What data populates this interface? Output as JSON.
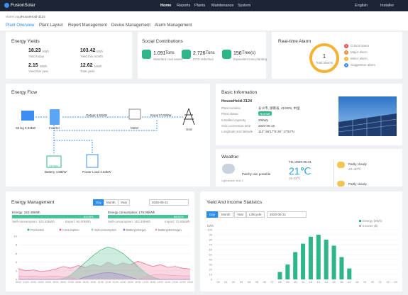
{
  "nav": {
    "logo": "FusionSolar",
    "items": [
      "Home",
      "Reports",
      "Plants",
      "Maintenance",
      "System"
    ],
    "language": "English",
    "user": "Installer"
  },
  "breadcrumb": [
    "Home page",
    "HouseHold-3124"
  ],
  "tabs": [
    "Plant Overview",
    "Plant Layout",
    "Report Management",
    "Device Management",
    "Alarm Management"
  ],
  "energy_yields": {
    "title": "Energy Yields",
    "items": [
      {
        "value": "18.23",
        "unit": "kWh",
        "label": "Yield today"
      },
      {
        "value": "103.42",
        "unit": "kWh",
        "label": "Yield this month"
      },
      {
        "value": "2.15",
        "unit": "MWh",
        "label": "Yield this year"
      },
      {
        "value": "12.62",
        "unit": "MWh",
        "label": "Total yield"
      }
    ]
  },
  "social": {
    "title": "Social Contributions",
    "items": [
      {
        "value": "1.091",
        "unit": "Tons",
        "label": "Standard coal saved"
      },
      {
        "value": "2.726",
        "unit": "Tons",
        "label": "CO2 reduction"
      },
      {
        "value": "156",
        "unit": "Tree(s)",
        "label": "Equivalent tree planting"
      }
    ]
  },
  "alarm": {
    "title": "Real-time Alarm",
    "total": "1",
    "total_label": "Total alarms",
    "items": [
      {
        "count": "0",
        "label": "Critical alarm"
      },
      {
        "count": "0",
        "label": "Major alarm"
      },
      {
        "count": "1",
        "label": "Minor alarm"
      },
      {
        "count": "0",
        "label": "Suggestion alarm"
      }
    ]
  },
  "energy_flow": {
    "title": "Energy Flow",
    "output": "Output 4.63kW",
    "export": "Export 0.00kW",
    "string": "String 9.93kW",
    "inverter": "Inverter",
    "meter": "Meter",
    "grid": "Grid",
    "battery": "Battery 4.88kW",
    "soc": "15.5%",
    "load": "Power Load 4.63kW"
  },
  "basic": {
    "title": "Basic Information",
    "name": "HouseHold-3124",
    "rows": [
      [
        "Plant location",
        "长沙市, 湖南省, 410005, 中国"
      ],
      [
        "Plant status",
        "Normal"
      ],
      [
        "Installed capacity",
        "20kWp"
      ],
      [
        "Grid connection time",
        "2020-05-18"
      ],
      [
        "Longitude and latitude",
        "112° 56'17\"E   26° 17'53\"N"
      ]
    ]
  },
  "weather": {
    "title": "Weather",
    "now": "Patchy rain possible",
    "note": "Light drizzle: level 2",
    "date": "Thu 2020-05-21",
    "temp": "21℃",
    "range": "15-23℃",
    "forecast": [
      {
        "desc": "Partly cloudy",
        "range": "20~30℃"
      },
      {
        "desc": "Partly cloudy"
      }
    ]
  },
  "energy_management": {
    "title": "Energy Management",
    "periods": [
      "Day",
      "Month",
      "Year"
    ],
    "date": "2020-05-21",
    "left": {
      "head": "Energy: 162.40kWh",
      "bar": "63.05%",
      "self": "Self-consumption: 102.40kWh",
      "other": "Export: 60.00kWh"
    },
    "right": {
      "head": "Energy consumption: 175.00kWh",
      "bar": "58.51%",
      "self": "Self-consumption: 102.40kWh",
      "other": "Import: 72.60kWh"
    },
    "chart": {
      "type": "area",
      "categories": [
        "00:00",
        "01:00",
        "02:00",
        "03:00",
        "04:00",
        "05:00",
        "06:00",
        "07:00",
        "08:00",
        "09:00",
        "10:00",
        "11:00",
        "12:00",
        "13:00",
        "14:00",
        "15:00",
        "16:00",
        "17:00",
        "18:00",
        "19:00",
        "20:00",
        "21:00",
        "22:00",
        "23:00"
      ],
      "series": [
        {
          "name": "Production",
          "color": "#3cb87a",
          "values": [
            0,
            0,
            0,
            0,
            0,
            0,
            0.2,
            1,
            2.5,
            4,
            5.5,
            6.8,
            7.5,
            7,
            6,
            4.5,
            3,
            1.5,
            0.5,
            0,
            0,
            0,
            0,
            0
          ]
        },
        {
          "name": "Consumption",
          "color": "#e8638c",
          "values": [
            2.5,
            2,
            2.2,
            1.8,
            2,
            2.4,
            3,
            2.6,
            3.2,
            2.8,
            3.5,
            3,
            4,
            3.2,
            3.8,
            3.4,
            4.2,
            3.6,
            3,
            3.4,
            2.8,
            3,
            2.6,
            2.4
          ]
        },
        {
          "name": "Self-consumption",
          "color": "#8fd3c4",
          "values": [
            0,
            0,
            0,
            0,
            0,
            0,
            0.2,
            1,
            2.5,
            2.8,
            3.5,
            3,
            4,
            3.2,
            3.8,
            3.4,
            3,
            1.5,
            0.5,
            0,
            0,
            0,
            0,
            0
          ]
        },
        {
          "name": "Battery(charge)",
          "color": "#a07ad8",
          "values": [
            0,
            0,
            0,
            0,
            0,
            0,
            0,
            0,
            0,
            0.6,
            1,
            1.4,
            1.6,
            1.4,
            1,
            0.5,
            0,
            0,
            0,
            0,
            0,
            0,
            0,
            0
          ]
        },
        {
          "name": "Battery(discharge)",
          "color": "#f2a2c0",
          "values": [
            0.8,
            0.7,
            0.8,
            0.6,
            0.7,
            0.8,
            0.6,
            0.4,
            0,
            0,
            0,
            0,
            0,
            0,
            0,
            0,
            0,
            0.6,
            1,
            1.2,
            1,
            0.9,
            0.8,
            0.8
          ]
        }
      ],
      "ylim": [
        0,
        10
      ],
      "yticks": [
        0,
        2,
        4,
        6,
        8,
        10
      ]
    }
  },
  "yield_stats": {
    "title": "Yield And Income Statistics",
    "periods": [
      "Day",
      "Month",
      "Year",
      "Lifecycle"
    ],
    "date": "2020-05-21",
    "income_label": "Income ($)",
    "unit": "kWh",
    "chart": {
      "type": "bar",
      "categories": [
        "00",
        "01",
        "02",
        "03",
        "04",
        "05",
        "06",
        "07",
        "08",
        "09",
        "10",
        "11",
        "12",
        "13",
        "14",
        "15",
        "16",
        "17",
        "18",
        "19",
        "20",
        "21",
        "22",
        "23"
      ],
      "series": [
        {
          "name": "Energy (kWh)",
          "color": "#2fb58a",
          "values": [
            0,
            0,
            0,
            0,
            0,
            0,
            0,
            0,
            15,
            30,
            55,
            72,
            86,
            90,
            80,
            68,
            45,
            22,
            0,
            0,
            0,
            0,
            0,
            0
          ]
        }
      ],
      "ylim": [
        0,
        100
      ],
      "yticks": [
        0,
        10,
        20,
        30,
        40,
        50,
        60,
        70,
        80,
        90,
        100
      ]
    }
  }
}
